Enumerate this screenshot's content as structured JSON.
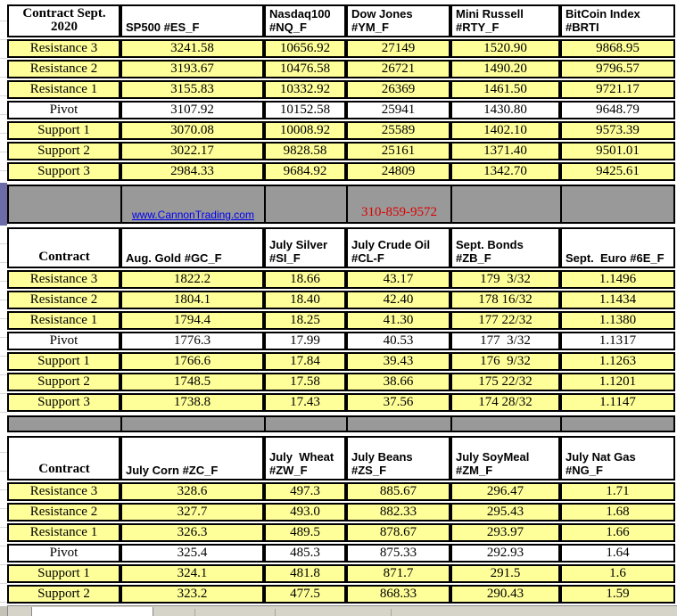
{
  "colors": {
    "cell_yellow": "#ffff99",
    "band_gray": "#999999",
    "strip_purple": "#6b6ba8",
    "link_blue": "#0000ee",
    "phone_red": "#dd0000",
    "border_black": "#000000"
  },
  "banner": {
    "website": "www.CannonTrading.com",
    "phone": "310-859-9572"
  },
  "tables": [
    {
      "corner": "Contract Sept.\n2020",
      "columns": [
        "SP500 #ES_F",
        "Nasdaq100\n#NQ_F",
        "Dow Jones\n#YM_F",
        "Mini Russell\n#RTY_F",
        "BitCoin Index\n#BRTI"
      ],
      "rows": [
        {
          "label": "Resistance 3",
          "values": [
            "3241.58",
            "10656.92",
            "27149",
            "1520.90",
            "9868.95"
          ]
        },
        {
          "label": "Resistance 2",
          "values": [
            "3193.67",
            "10476.58",
            "26721",
            "1490.20",
            "9796.57"
          ]
        },
        {
          "label": "Resistance 1",
          "values": [
            "3155.83",
            "10332.92",
            "26369",
            "1461.50",
            "9721.17"
          ]
        },
        {
          "label": "Pivot",
          "values": [
            "3107.92",
            "10152.58",
            "25941",
            "1430.80",
            "9648.79"
          ]
        },
        {
          "label": "Support 1",
          "values": [
            "3070.08",
            "10008.92",
            "25589",
            "1402.10",
            "9573.39"
          ]
        },
        {
          "label": "Support 2",
          "values": [
            "3022.17",
            "9828.58",
            "25161",
            "1371.40",
            "9501.01"
          ]
        },
        {
          "label": "Support 3",
          "values": [
            "2984.33",
            "9684.92",
            "24809",
            "1342.70",
            "9425.61"
          ]
        }
      ]
    },
    {
      "corner": "Contract",
      "columns": [
        "Aug. Gold #GC_F",
        "July Silver\n#SI_F",
        "July Crude Oil\n#CL-F",
        "Sept. Bonds\n#ZB_F",
        "Sept.  Euro #6E_F"
      ],
      "rows": [
        {
          "label": "Resistance 3",
          "values": [
            "1822.2",
            "18.66",
            "43.17",
            "179  3/32",
            "1.1496"
          ]
        },
        {
          "label": "Resistance 2",
          "values": [
            "1804.1",
            "18.40",
            "42.40",
            "178 16/32",
            "1.1434"
          ]
        },
        {
          "label": "Resistance 1",
          "values": [
            "1794.4",
            "18.25",
            "41.30",
            "177 22/32",
            "1.1380"
          ]
        },
        {
          "label": "Pivot",
          "values": [
            "1776.3",
            "17.99",
            "40.53",
            "177  3/32",
            "1.1317"
          ]
        },
        {
          "label": "Support 1",
          "values": [
            "1766.6",
            "17.84",
            "39.43",
            "176  9/32",
            "1.1263"
          ]
        },
        {
          "label": "Support 2",
          "values": [
            "1748.5",
            "17.58",
            "38.66",
            "175 22/32",
            "1.1201"
          ]
        },
        {
          "label": "Support 3",
          "values": [
            "1738.8",
            "17.43",
            "37.56",
            "174 28/32",
            "1.1147"
          ]
        }
      ]
    },
    {
      "corner": "Contract",
      "columns": [
        "July Corn #ZC_F",
        "July  Wheat\n#ZW_F",
        "July Beans #ZS_F",
        "July SoyMeal\n#ZM_F",
        "July Nat Gas #NG_F"
      ],
      "rows": [
        {
          "label": "Resistance 3",
          "values": [
            "328.6",
            "497.3",
            "885.67",
            "296.47",
            "1.71"
          ]
        },
        {
          "label": "Resistance 2",
          "values": [
            "327.7",
            "493.0",
            "882.33",
            "295.43",
            "1.68"
          ]
        },
        {
          "label": "Resistance 1",
          "values": [
            "326.3",
            "489.5",
            "878.67",
            "293.97",
            "1.66"
          ]
        },
        {
          "label": "Pivot",
          "values": [
            "325.4",
            "485.3",
            "875.33",
            "292.93",
            "1.64"
          ]
        },
        {
          "label": "Support 1",
          "values": [
            "324.1",
            "481.8",
            "871.7",
            "291.5",
            "1.6"
          ]
        },
        {
          "label": "Support 2",
          "values": [
            "323.2",
            "477.5",
            "868.33",
            "290.43",
            "1.59"
          ]
        }
      ]
    }
  ]
}
